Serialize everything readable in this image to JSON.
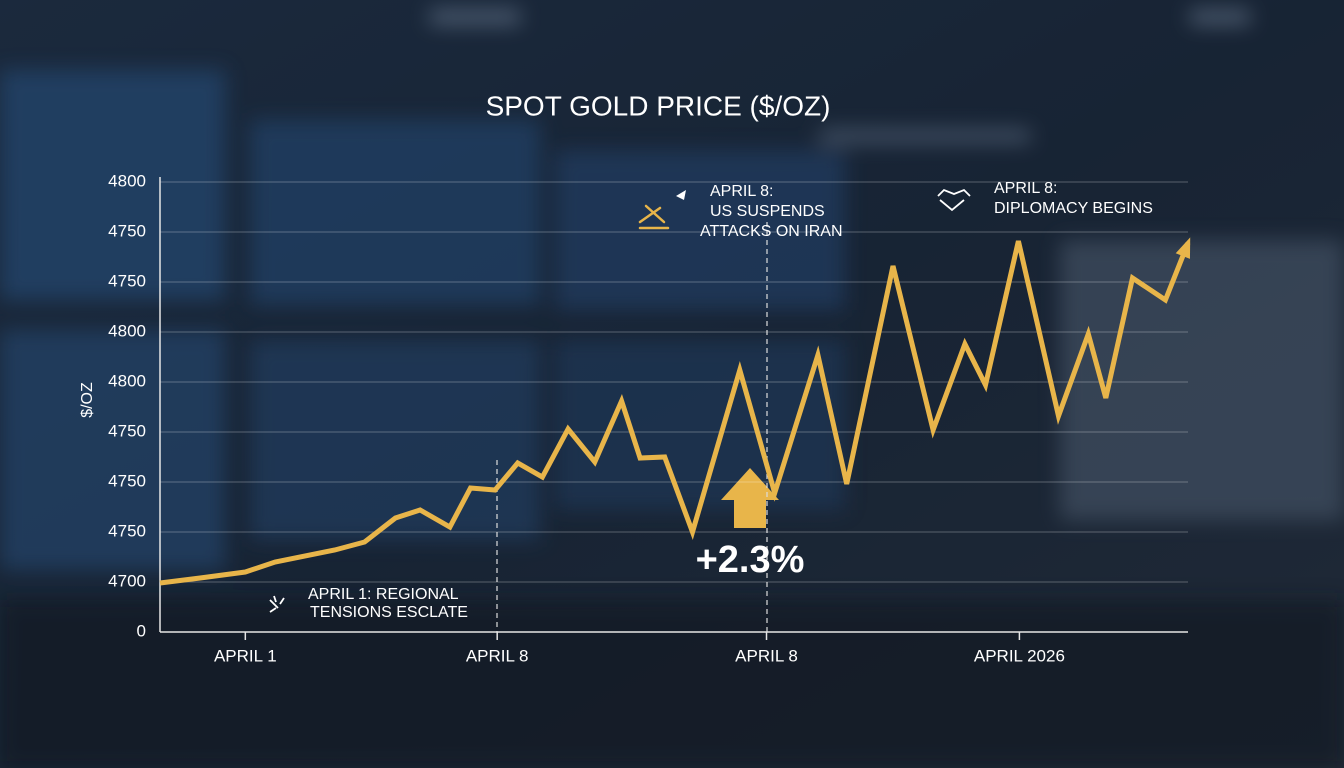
{
  "chart_data": {
    "type": "line",
    "title": "SPOT GOLD PRICE ($/OZ)",
    "y_label": "$/OZ",
    "x": [
      0,
      3.9,
      8.3,
      11.2,
      17.0,
      19.9,
      22.9,
      25.3,
      28.2,
      30.2,
      32.6,
      34.8,
      37.2,
      39.7,
      42.3,
      44.9,
      46.7,
      49.1,
      51.8,
      56.4,
      59.8,
      64.0,
      66.8,
      71.3,
      75.2,
      78.3,
      80.3,
      83.5,
      87.4,
      90.3,
      92.0,
      94.6,
      97.8,
      100
    ],
    "values": [
      0.98,
      1.08,
      1.2,
      1.4,
      1.64,
      1.8,
      2.28,
      2.44,
      2.1,
      2.88,
      2.84,
      3.38,
      3.1,
      4.06,
      3.4,
      4.62,
      3.48,
      3.5,
      2.0,
      5.24,
      2.78,
      5.54,
      2.96,
      7.32,
      4.04,
      5.76,
      4.94,
      7.82,
      4.32,
      5.96,
      4.68,
      7.08,
      6.64,
      7.78
    ],
    "color": "#e8b54a",
    "xlim": [
      0,
      100
    ],
    "xticks": [
      {
        "value": 8.3,
        "label": "APRIL 1"
      },
      {
        "value": 32.8,
        "label": "APRIL 8"
      },
      {
        "value": 59.0,
        "label": "APRIL 8"
      },
      {
        "value": 83.6,
        "label": "APRIL 2026"
      }
    ],
    "ylim": [
      0,
      9
    ],
    "yticks": [
      0,
      {
        "value": 1,
        "label": "4700"
      },
      {
        "value": 2,
        "label": "4750"
      },
      {
        "value": 3,
        "label": "4750"
      },
      {
        "value": 4,
        "label": "4750"
      },
      {
        "value": 5,
        "label": "4800"
      },
      {
        "value": 6,
        "label": "4800"
      },
      {
        "value": 7,
        "label": "4750"
      },
      {
        "value": 8,
        "label": "4750"
      },
      {
        "value": 9,
        "label": "4800"
      }
    ],
    "grid": true,
    "annotations": [
      {
        "lines": [
          "APRIL 1: REGIONAL",
          "TENSIONS ESCLATE"
        ]
      },
      {
        "lines": [
          "APRIL 8:",
          "US SUSPENDS",
          "ATTACKS ON IRAN"
        ]
      },
      {
        "lines": [
          "APRIL 8:",
          "DIPLOMACY BEGINS"
        ]
      },
      {
        "lines": [
          "+2.3%"
        ]
      }
    ]
  }
}
